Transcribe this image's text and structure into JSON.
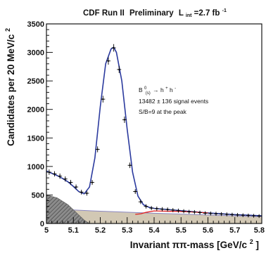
{
  "chart_data": {
    "type": "line",
    "title": {
      "experiment": "CDF Run II",
      "status": "Preliminary",
      "lumi_symbol": "L",
      "lumi_subscript": "int",
      "lumi_value": "=2.7 fb",
      "lumi_exponent": "-1"
    },
    "xlabel": {
      "main": "Invariant ππ-mass [GeV/c",
      "exponent": "2",
      "close": "]"
    },
    "ylabel": {
      "main": "Candidates per 20 MeV/c",
      "exponent": "2"
    },
    "xlim": [
      5.0,
      5.8
    ],
    "ylim": [
      0,
      3500
    ],
    "x_ticks": [
      "5",
      "5.1",
      "5.2",
      "5.3",
      "5.4",
      "5.5",
      "5.6",
      "5.7",
      "5.8"
    ],
    "y_ticks": [
      "0",
      "500",
      "1000",
      "1500",
      "2000",
      "2500",
      "3000",
      "3500"
    ],
    "annotation": {
      "decay_B": "B",
      "decay_sup": "0",
      "decay_sub": "(s)",
      "decay_arrow": "→ h",
      "decay_h1_sup": "+",
      "decay_h2": "h",
      "decay_h2_sup": "-",
      "signal": "13482 ± 136 signal events",
      "sb": "S/B=9 at the peak"
    },
    "series": [
      {
        "role": "data",
        "style": "points with error bars",
        "x": [
          5.01,
          5.03,
          5.05,
          5.07,
          5.09,
          5.11,
          5.13,
          5.15,
          5.17,
          5.19,
          5.21,
          5.23,
          5.25,
          5.27,
          5.29,
          5.31,
          5.33,
          5.35,
          5.37,
          5.39,
          5.41,
          5.43,
          5.45,
          5.47,
          5.49,
          5.51,
          5.53,
          5.55,
          5.57,
          5.59,
          5.61,
          5.63,
          5.65,
          5.67,
          5.69,
          5.71,
          5.73,
          5.75,
          5.77,
          5.79
        ],
        "y": [
          900,
          870,
          830,
          780,
          720,
          640,
          550,
          530,
          720,
          1300,
          2180,
          2850,
          3080,
          2700,
          1820,
          1020,
          560,
          380,
          300,
          270,
          260,
          250,
          245,
          235,
          225,
          215,
          205,
          200,
          190,
          180,
          175,
          170,
          165,
          160,
          155,
          150,
          145,
          140,
          135,
          130
        ]
      },
      {
        "role": "total fit",
        "color": "#2b3a9e",
        "x": [
          5.0,
          5.02,
          5.04,
          5.06,
          5.08,
          5.1,
          5.12,
          5.14,
          5.16,
          5.18,
          5.2,
          5.22,
          5.24,
          5.25,
          5.26,
          5.28,
          5.3,
          5.32,
          5.34,
          5.36,
          5.38,
          5.4,
          5.45,
          5.5,
          5.55,
          5.6,
          5.65,
          5.7,
          5.75,
          5.8
        ],
        "y": [
          920,
          880,
          840,
          790,
          730,
          650,
          560,
          520,
          640,
          1150,
          2050,
          2800,
          3060,
          3090,
          3000,
          2500,
          1650,
          900,
          480,
          330,
          285,
          265,
          245,
          225,
          205,
          185,
          170,
          155,
          145,
          135
        ]
      },
      {
        "role": "other component",
        "color": "#e02020",
        "x": [
          5.33,
          5.35,
          5.37,
          5.4,
          5.45,
          5.5,
          5.55,
          5.6
        ],
        "y": [
          160,
          170,
          195,
          220,
          215,
          210,
          200,
          185
        ]
      }
    ],
    "bands": [
      {
        "role": "combinatorial background",
        "fill": "#d2c8b4",
        "x": [
          5.0,
          5.2,
          5.4,
          5.6,
          5.8
        ],
        "y": [
          260,
          215,
          180,
          150,
          120
        ]
      },
      {
        "role": "partially reconstructed background",
        "fill": "#8c8c8c",
        "x": [
          5.0,
          5.04,
          5.08,
          5.12,
          5.14,
          5.16
        ],
        "y": [
          500,
          450,
          330,
          150,
          60,
          0
        ]
      }
    ],
    "grid": false,
    "legend": "none"
  }
}
